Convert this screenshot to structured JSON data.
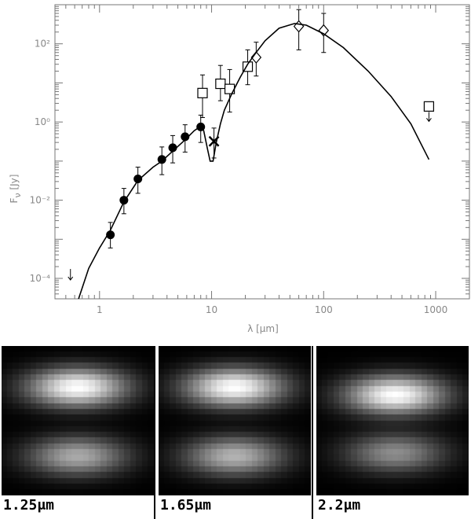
{
  "chart_data": [
    {
      "type": "scatter",
      "title": "",
      "xlabel": "λ [μm]",
      "ylabel": "F_ν [Jy]",
      "xscale": "log",
      "yscale": "log",
      "xlim": [
        0.4,
        2000
      ],
      "ylim": [
        3e-05,
        1000
      ],
      "xtick_labels": [
        "1",
        "10",
        "100",
        "1000"
      ],
      "xtick_values": [
        1,
        10,
        100,
        1000
      ],
      "ytick_labels": [
        "10⁻⁴",
        "10⁻²",
        "10⁰",
        "10²"
      ],
      "ytick_values": [
        0.0001,
        0.01,
        1,
        100
      ],
      "grid": false,
      "legend": "none",
      "series": [
        {
          "marker": "filled-circle",
          "x": [
            1.25,
            1.65,
            2.2,
            3.6,
            4.5,
            5.8,
            8.0
          ],
          "y": [
            0.0013,
            0.01,
            0.035,
            0.11,
            0.22,
            0.42,
            0.75
          ],
          "err_low": [
            0.0006,
            0.0045,
            0.015,
            0.045,
            0.09,
            0.17,
            0.3
          ],
          "err_high": [
            0.0027,
            0.02,
            0.07,
            0.23,
            0.45,
            0.85,
            1.5
          ]
        },
        {
          "marker": "open-square",
          "x": [
            8.3,
            12,
            14.5,
            21,
            870
          ],
          "y": [
            5.5,
            9.5,
            7.0,
            26,
            2.5
          ],
          "err_low": [
            1.3,
            3.5,
            1.8,
            9,
            null
          ],
          "err_high": [
            16,
            28,
            22,
            70,
            null
          ],
          "upper_limit": [
            false,
            false,
            false,
            false,
            true
          ]
        },
        {
          "marker": "open-diamond",
          "x": [
            25,
            60,
            100
          ],
          "y": [
            45,
            280,
            220
          ],
          "err_low": [
            15,
            70,
            60
          ],
          "err_high": [
            110,
            750,
            600
          ]
        },
        {
          "marker": "cross",
          "x": [
            10.5
          ],
          "y": [
            0.32
          ],
          "err_low": [
            0.12
          ],
          "err_high": [
            0.7
          ]
        },
        {
          "marker": "upper-limit-arrow",
          "x": [
            0.55
          ],
          "y": [
            0.00012
          ]
        },
        {
          "type": "line",
          "x": [
            0.65,
            0.8,
            1.0,
            1.25,
            1.65,
            2.2,
            3.0,
            3.6,
            4.5,
            5.8,
            7.0,
            8.0,
            8.5,
            9.2,
            9.7,
            10.3,
            11,
            12,
            13,
            15,
            18,
            21,
            25,
            30,
            40,
            55,
            70,
            100,
            150,
            250,
            400,
            600,
            870
          ],
          "y": [
            3e-05,
            0.00018,
            0.0006,
            0.0017,
            0.009,
            0.032,
            0.07,
            0.1,
            0.18,
            0.35,
            0.6,
            0.78,
            0.6,
            0.2,
            0.1,
            0.1,
            0.3,
            0.9,
            2.0,
            5.0,
            14,
            30,
            60,
            120,
            250,
            330,
            300,
            180,
            80,
            20,
            4.5,
            0.9,
            0.11
          ]
        }
      ]
    },
    {
      "type": "heatmap",
      "label": "1.25μm",
      "lobes": [
        {
          "cx": 0.5,
          "cy": 0.28,
          "peak": 1.0
        },
        {
          "cx": 0.5,
          "cy": 0.74,
          "peak": 0.62
        }
      ]
    },
    {
      "type": "heatmap",
      "label": "1.65μm",
      "lobes": [
        {
          "cx": 0.5,
          "cy": 0.28,
          "peak": 1.0
        },
        {
          "cx": 0.5,
          "cy": 0.74,
          "peak": 0.66
        }
      ]
    },
    {
      "type": "heatmap",
      "label": "2.2μm",
      "lobes": [
        {
          "cx": 0.52,
          "cy": 0.33,
          "peak": 1.0
        },
        {
          "cx": 0.52,
          "cy": 0.72,
          "peak": 0.5
        }
      ]
    }
  ]
}
